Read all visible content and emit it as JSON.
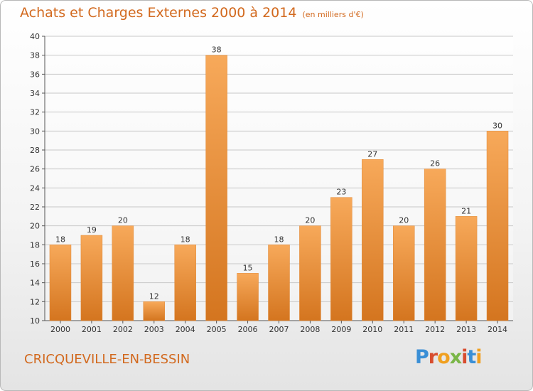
{
  "header": {
    "title": "Achats et Charges Externes 2000 à 2014",
    "subtitle": "(en milliers d'€)"
  },
  "footer": {
    "commune": "CRICQUEVILLE-EN-BESSIN",
    "logo": [
      "P",
      "r",
      "o",
      "x",
      "i",
      "t",
      "i"
    ]
  },
  "colors": {
    "accent": "#d2691e",
    "bar_light": "#f7a95a",
    "bar_dark": "#d4751f",
    "logo_letters": [
      "#3a8fd6",
      "#d84d2f",
      "#f0a020",
      "#7ab648",
      "#d84d2f",
      "#3a8fd6",
      "#f0a020"
    ]
  },
  "chart_data": {
    "type": "bar",
    "title": "Achats et Charges Externes 2000 à 2014",
    "subtitle": "(en milliers d'€)",
    "categories": [
      "2000",
      "2001",
      "2002",
      "2003",
      "2004",
      "2005",
      "2006",
      "2007",
      "2008",
      "2009",
      "2010",
      "2011",
      "2012",
      "2013",
      "2014"
    ],
    "values": [
      18,
      19,
      20,
      12,
      18,
      38,
      15,
      18,
      20,
      23,
      27,
      20,
      26,
      21,
      30
    ],
    "ylim": [
      10,
      40
    ],
    "yticks": [
      10,
      12,
      14,
      16,
      18,
      20,
      22,
      24,
      26,
      28,
      30,
      32,
      34,
      36,
      38,
      40
    ],
    "grid": true,
    "xlabel": "",
    "ylabel": ""
  }
}
